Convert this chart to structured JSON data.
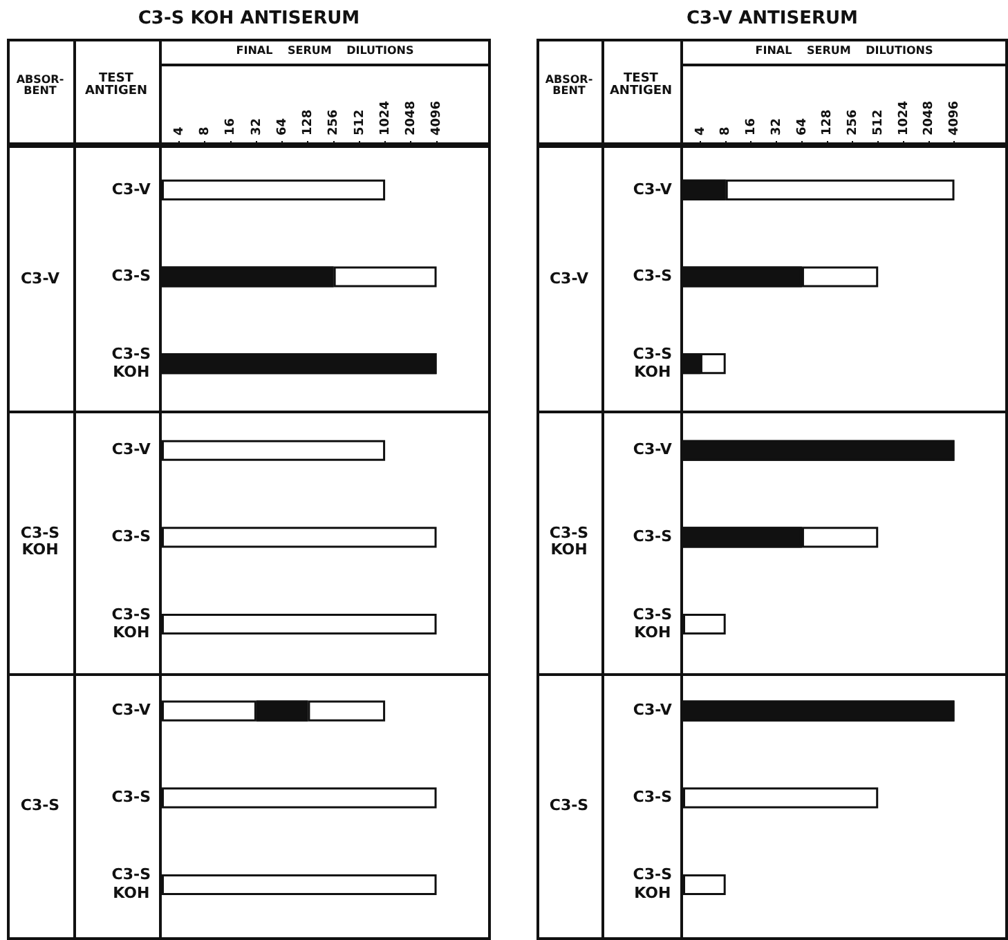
{
  "chart_data": [
    {
      "type": "bar",
      "title": "C3-S KOH ANTISERUM",
      "xlabel": "FINAL SERUM DILUTIONS",
      "ylabel": "TEST\nANTIGEN",
      "annotations": [
        "ABSOR-\nBENT",
        "C3-V",
        "C3-S\nKOH",
        "C3-S"
      ],
      "categories": [
        "C3-V",
        "C3-S",
        "C3-S\nKOH",
        "C3-V",
        "C3-S",
        "C3-S\nKOH",
        "C3-V",
        "C3-S",
        "C3-S\nKOH"
      ],
      "orientation": "horizontal",
      "log": "x",
      "grid": false,
      "legend": false,
      "xlim": [
        2.5,
        16384
      ],
      "xticks": [
        4,
        8,
        16,
        32,
        64,
        128,
        256,
        512,
        1024,
        2048,
        4096
      ],
      "series": [
        {
          "values": [
            1024,
            256,
            4096,
            1024,
            4096,
            4096,
            32,
            4096,
            4096
          ],
          "colors": [
            "#ffffff",
            "#111111",
            "#111111",
            "#ffffff",
            "#ffffff",
            "#ffffff",
            "#ffffff",
            "#ffffff",
            "#ffffff"
          ]
        },
        {
          "base": [
            null,
            256,
            null,
            null,
            null,
            null,
            32,
            null,
            null
          ],
          "values": [
            null,
            3840,
            null,
            null,
            null,
            null,
            96,
            null,
            null
          ],
          "colors": [
            "#ffffff",
            "#ffffff",
            "#ffffff",
            "#ffffff",
            "#ffffff",
            "#ffffff",
            "#111111",
            "#ffffff",
            "#ffffff"
          ]
        },
        {
          "base": [
            null,
            null,
            null,
            null,
            null,
            null,
            128,
            null,
            null
          ],
          "values": [
            null,
            null,
            null,
            null,
            null,
            null,
            896,
            null,
            null
          ],
          "colors": [
            "#ffffff",
            "#ffffff",
            "#ffffff",
            "#ffffff",
            "#ffffff",
            "#ffffff",
            "#ffffff",
            "#ffffff",
            "#ffffff"
          ]
        }
      ]
    },
    {
      "type": "bar",
      "title": "C3-V ANTISERUM",
      "xlabel": "FINAL SERUM DILUTIONS",
      "ylabel": "TEST\nANTIGEN",
      "annotations": [
        "ABSOR-\nBENT",
        "C3-V",
        "C3-S\nKOH",
        "C3-S"
      ],
      "categories": [
        "C3-V",
        "C3-S",
        "C3-S\nKOH",
        "C3-V",
        "C3-S",
        "C3-S\nKOH",
        "C3-V",
        "C3-S",
        "C3-S\nKOH"
      ],
      "orientation": "horizontal",
      "log": "x",
      "grid": false,
      "legend": false,
      "xlim": [
        2.5,
        16384
      ],
      "xticks": [
        4,
        8,
        16,
        32,
        64,
        128,
        256,
        512,
        1024,
        2048,
        4096
      ],
      "series": [
        {
          "values": [
            8,
            64,
            4,
            4096,
            64,
            8,
            4096,
            512,
            8
          ],
          "colors": [
            "#111111",
            "#111111",
            "#111111",
            "#111111",
            "#111111",
            "#ffffff",
            "#111111",
            "#ffffff",
            "#ffffff"
          ]
        },
        {
          "base": [
            8,
            64,
            4,
            null,
            64,
            null,
            null,
            null,
            null
          ],
          "values": [
            4088,
            448,
            4,
            null,
            448,
            null,
            null,
            null,
            null
          ],
          "colors": [
            "#ffffff",
            "#ffffff",
            "#ffffff",
            "#ffffff",
            "#ffffff",
            "#ffffff",
            "#ffffff",
            "#ffffff",
            "#ffffff"
          ]
        }
      ]
    }
  ]
}
